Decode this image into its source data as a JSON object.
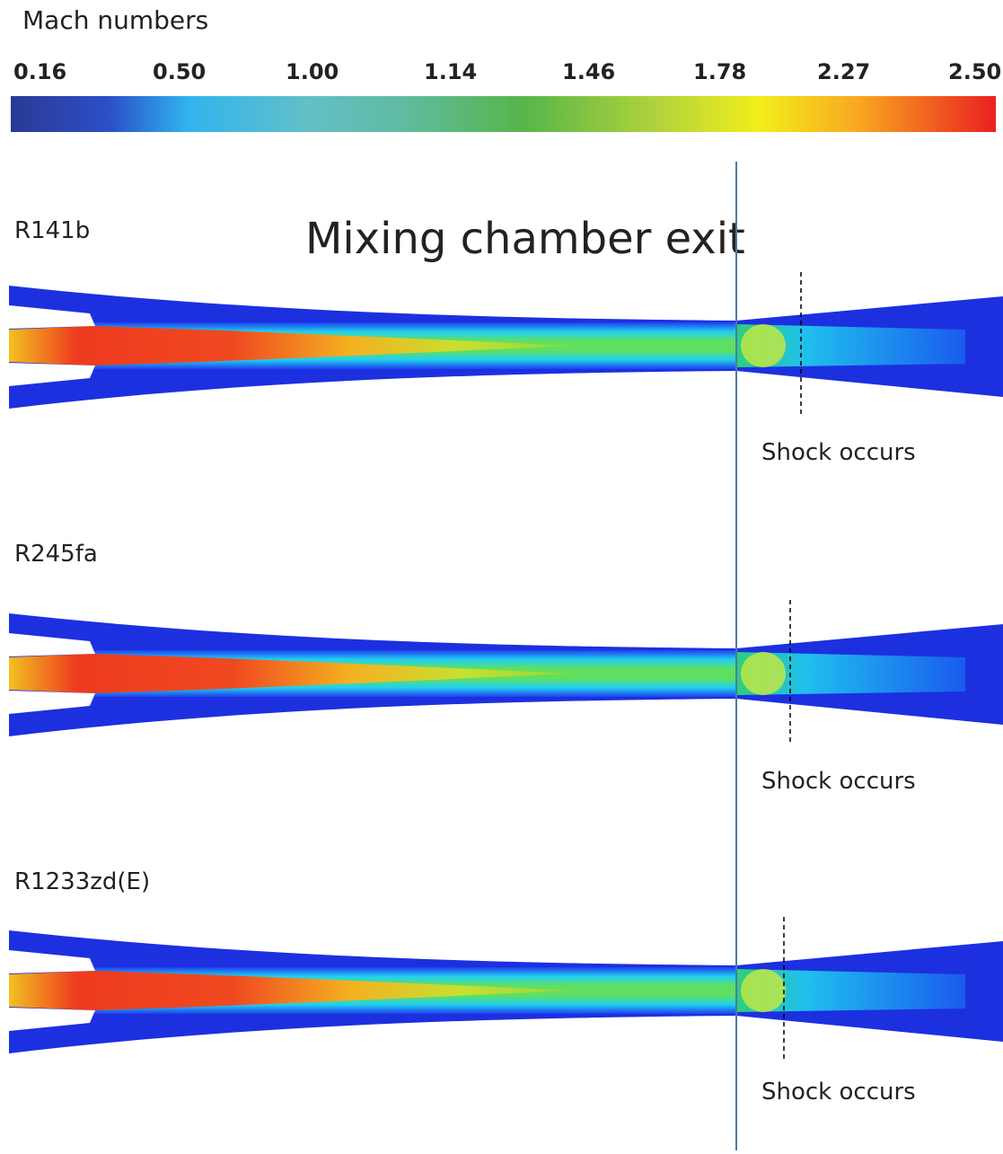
{
  "legend": {
    "title": "Mach numbers",
    "labels": [
      "0.16",
      "0.50",
      "1.00",
      "1.14",
      "1.46",
      "1.78",
      "2.27",
      "2.50"
    ]
  },
  "annotation": "Mixing chamber exit",
  "panels": [
    {
      "label": "R141b",
      "note": "Shock occurs"
    },
    {
      "label": "R245fa",
      "note": "Shock occurs"
    },
    {
      "label": "R1233zd(E)",
      "note": "Shock occurs"
    }
  ]
}
